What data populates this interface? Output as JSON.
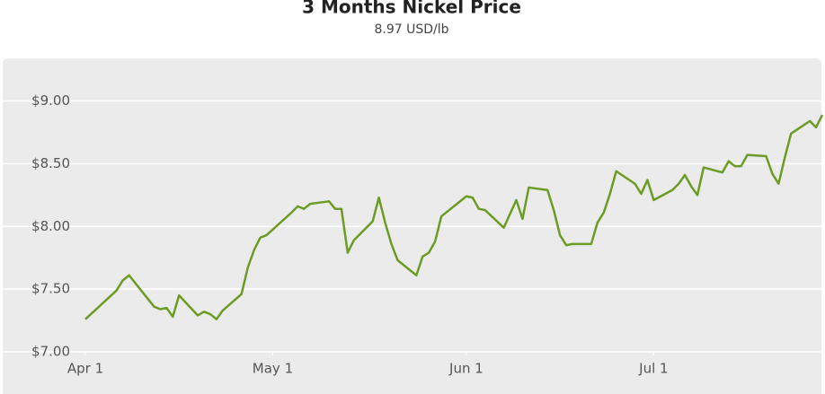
{
  "chart_data": {
    "type": "line",
    "title": "3 Months Nickel Price",
    "subtitle": "8.97 USD/lb",
    "x": [
      0,
      5,
      6,
      7,
      11,
      12,
      13,
      14,
      15,
      18,
      19,
      20,
      21,
      22,
      25,
      26,
      27,
      28,
      29,
      33,
      34,
      35,
      36,
      39,
      40,
      41,
      42,
      43,
      46,
      47,
      48,
      49,
      50,
      53,
      54,
      55,
      56,
      57,
      61,
      62,
      63,
      64,
      67,
      68,
      69,
      70,
      71,
      74,
      75,
      76,
      77,
      78,
      81,
      82,
      83,
      84,
      85,
      88,
      89,
      90,
      91,
      94,
      95,
      96,
      97,
      98,
      99,
      102,
      103,
      104,
      105,
      106,
      109,
      110,
      111,
      112,
      113,
      116,
      117,
      118
    ],
    "series": [
      {
        "name": "Nickel",
        "color": "#6b9c25",
        "values": [
          7.26,
          7.49,
          7.57,
          7.61,
          7.36,
          7.34,
          7.35,
          7.28,
          7.45,
          7.29,
          7.32,
          7.3,
          7.26,
          7.33,
          7.46,
          7.67,
          7.81,
          7.91,
          7.93,
          8.11,
          8.16,
          8.14,
          8.18,
          8.2,
          8.14,
          8.14,
          7.79,
          7.89,
          8.04,
          8.23,
          8.03,
          7.86,
          7.73,
          7.61,
          7.76,
          7.79,
          7.88,
          8.08,
          8.24,
          8.23,
          8.14,
          8.13,
          7.99,
          8.1,
          8.21,
          8.06,
          8.31,
          8.29,
          8.13,
          7.93,
          7.85,
          7.86,
          7.86,
          8.03,
          8.11,
          8.26,
          8.44,
          8.34,
          8.26,
          8.37,
          8.21,
          8.29,
          8.34,
          8.41,
          8.32,
          8.25,
          8.47,
          8.43,
          8.52,
          8.48,
          8.48,
          8.57,
          8.56,
          8.42,
          8.34,
          8.55,
          8.74,
          8.84,
          8.79,
          8.89
        ]
      }
    ],
    "xlim": [
      0,
      118
    ],
    "xticks": [
      {
        "value": 0,
        "label": "Apr 1"
      },
      {
        "value": 30,
        "label": "May 1"
      },
      {
        "value": 61,
        "label": "Jun 1"
      },
      {
        "value": 91,
        "label": "Jul 1"
      }
    ],
    "ylim": [
      7,
      9.34
    ],
    "yticks": [
      {
        "value": 7,
        "label": "$7.00"
      },
      {
        "value": 7.5,
        "label": "$7.50"
      },
      {
        "value": 8,
        "label": "$8.00"
      },
      {
        "value": 8.5,
        "label": "$8.50"
      },
      {
        "value": 9,
        "label": "$9.00"
      }
    ],
    "grid": true
  }
}
